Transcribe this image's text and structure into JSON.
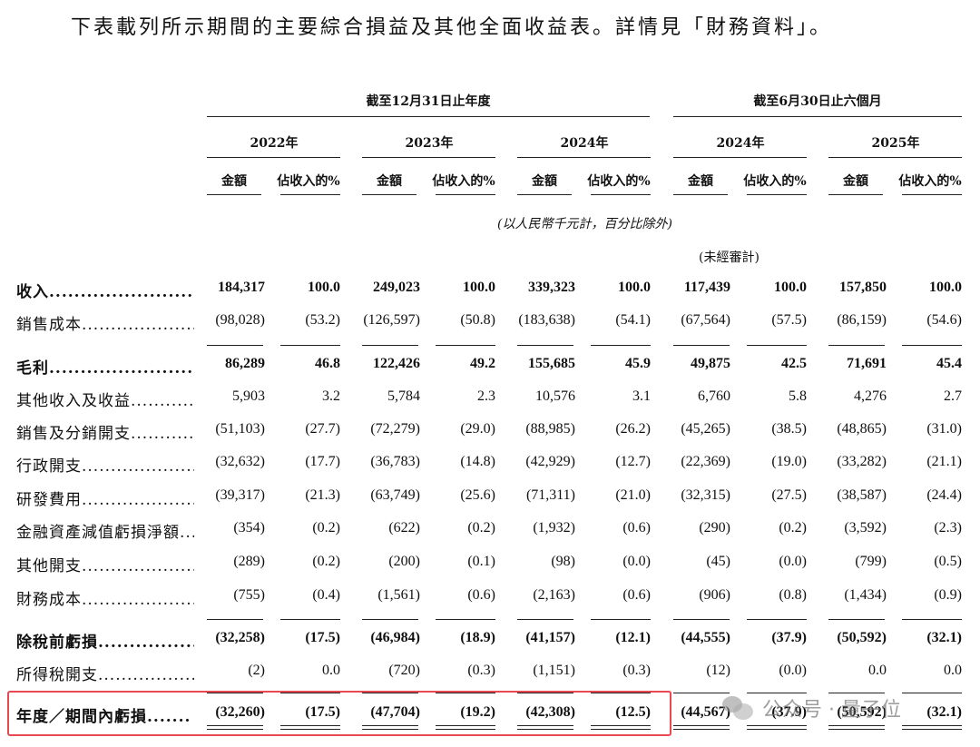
{
  "intro_text": "下表載列所示期間的主要綜合損益及其他全面收益表。詳情見「財務資料」。",
  "header": {
    "fy_label": "截至12月31日止年度",
    "h1_label": "截至6月30日止六個月",
    "periods": [
      "2022年",
      "2023年",
      "2024年",
      "2024年",
      "2025年"
    ],
    "amount_label": "金額",
    "pct_label": "佔收入的%",
    "unit_note": "(以人民幣千元計，百分比除外)",
    "unaudited": "(未經審計)"
  },
  "rows": [
    {
      "label": "收入.........................",
      "bold": true,
      "values": [
        "184,317",
        "100.0",
        "249,023",
        "100.0",
        "339,323",
        "100.0",
        "117,439",
        "100.0",
        "157,850",
        "100.0"
      ]
    },
    {
      "label": "銷售成本.....................",
      "bold": false,
      "values": [
        "(98,028)",
        "(53.2)",
        "(126,597)",
        "(50.8)",
        "(183,638)",
        "(54.1)",
        "(67,564)",
        "(57.5)",
        "(86,159)",
        "(54.6)"
      ]
    },
    {
      "label": "毛利.........................",
      "bold": true,
      "values": [
        "86,289",
        "46.8",
        "122,426",
        "49.2",
        "155,685",
        "45.9",
        "49,875",
        "42.5",
        "71,691",
        "45.4"
      ]
    },
    {
      "label": "其他收入及收益...............",
      "bold": false,
      "values": [
        "5,903",
        "3.2",
        "5,784",
        "2.3",
        "10,576",
        "3.1",
        "6,760",
        "5.8",
        "4,276",
        "2.7"
      ]
    },
    {
      "label": "銷售及分銷開支...............",
      "bold": false,
      "values": [
        "(51,103)",
        "(27.7)",
        "(72,279)",
        "(29.0)",
        "(88,985)",
        "(26.2)",
        "(45,265)",
        "(38.5)",
        "(48,865)",
        "(31.0)"
      ]
    },
    {
      "label": "行政開支.....................",
      "bold": false,
      "values": [
        "(32,632)",
        "(17.7)",
        "(36,783)",
        "(14.8)",
        "(42,929)",
        "(12.7)",
        "(22,369)",
        "(19.0)",
        "(33,282)",
        "(21.1)"
      ]
    },
    {
      "label": "研發費用.....................",
      "bold": false,
      "values": [
        "(39,317)",
        "(21.3)",
        "(63,749)",
        "(25.6)",
        "(71,311)",
        "(21.0)",
        "(32,315)",
        "(27.5)",
        "(38,587)",
        "(24.4)"
      ]
    },
    {
      "label": "金融資產減值虧損淨額...",
      "bold": false,
      "values": [
        "(354)",
        "(0.2)",
        "(622)",
        "(0.2)",
        "(1,932)",
        "(0.6)",
        "(290)",
        "(0.2)",
        "(3,592)",
        "(2.3)"
      ]
    },
    {
      "label": "其他開支.....................",
      "bold": false,
      "values": [
        "(289)",
        "(0.2)",
        "(200)",
        "(0.1)",
        "(98)",
        "(0.0)",
        "(45)",
        "(0.0)",
        "(799)",
        "(0.5)"
      ]
    },
    {
      "label": "財務成本.....................",
      "bold": false,
      "values": [
        "(755)",
        "(0.4)",
        "(1,561)",
        "(0.6)",
        "(2,163)",
        "(0.6)",
        "(906)",
        "(0.8)",
        "(1,434)",
        "(0.9)"
      ]
    },
    {
      "label": "除稅前虧損...................",
      "bold": true,
      "values": [
        "(32,258)",
        "(17.5)",
        "(46,984)",
        "(18.9)",
        "(41,157)",
        "(12.1)",
        "(44,555)",
        "(37.9)",
        "(50,592)",
        "(32.1)"
      ]
    },
    {
      "label": "所得稅開支...................",
      "bold": false,
      "values": [
        "(2)",
        "0.0",
        "(720)",
        "(0.3)",
        "(1,151)",
        "(0.3)",
        "(12)",
        "(0.0)",
        "0.0",
        "0.0"
      ]
    },
    {
      "label": "年度／期間內虧損.......",
      "bold": true,
      "values": [
        "(32,260)",
        "(17.5)",
        "(47,704)",
        "(19.2)",
        "(42,308)",
        "(12.5)",
        "(44,567)",
        "(37.9)",
        "(50,592)",
        "(32.1)"
      ]
    }
  ],
  "highlight_color": "#e8484f",
  "watermark": {
    "text": "公众号 · 量子位",
    "icon": "wechat-icon"
  }
}
